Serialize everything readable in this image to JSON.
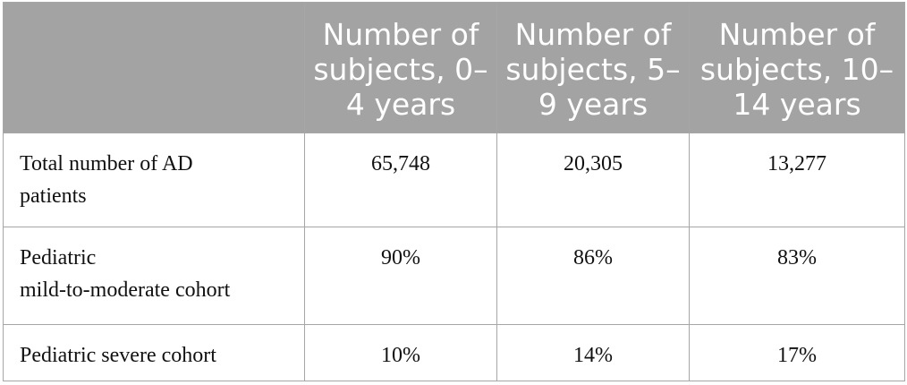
{
  "table": {
    "columns": [
      "Number of subjects, 0–4 years",
      "Number of subjects, 5–9 years",
      "Number of subjects, 10–14 years"
    ],
    "rows": [
      {
        "label": [
          "Total number of AD",
          "patients"
        ],
        "cells": [
          "65,748",
          "20,305",
          "13,277"
        ]
      },
      {
        "label": [
          "Pediatric",
          "mild-to-moderate cohort"
        ],
        "cells": [
          "90%",
          "86%",
          "83%"
        ]
      },
      {
        "label": [
          "Pediatric severe cohort"
        ],
        "cells": [
          "10%",
          "14%",
          "17%"
        ]
      }
    ]
  }
}
